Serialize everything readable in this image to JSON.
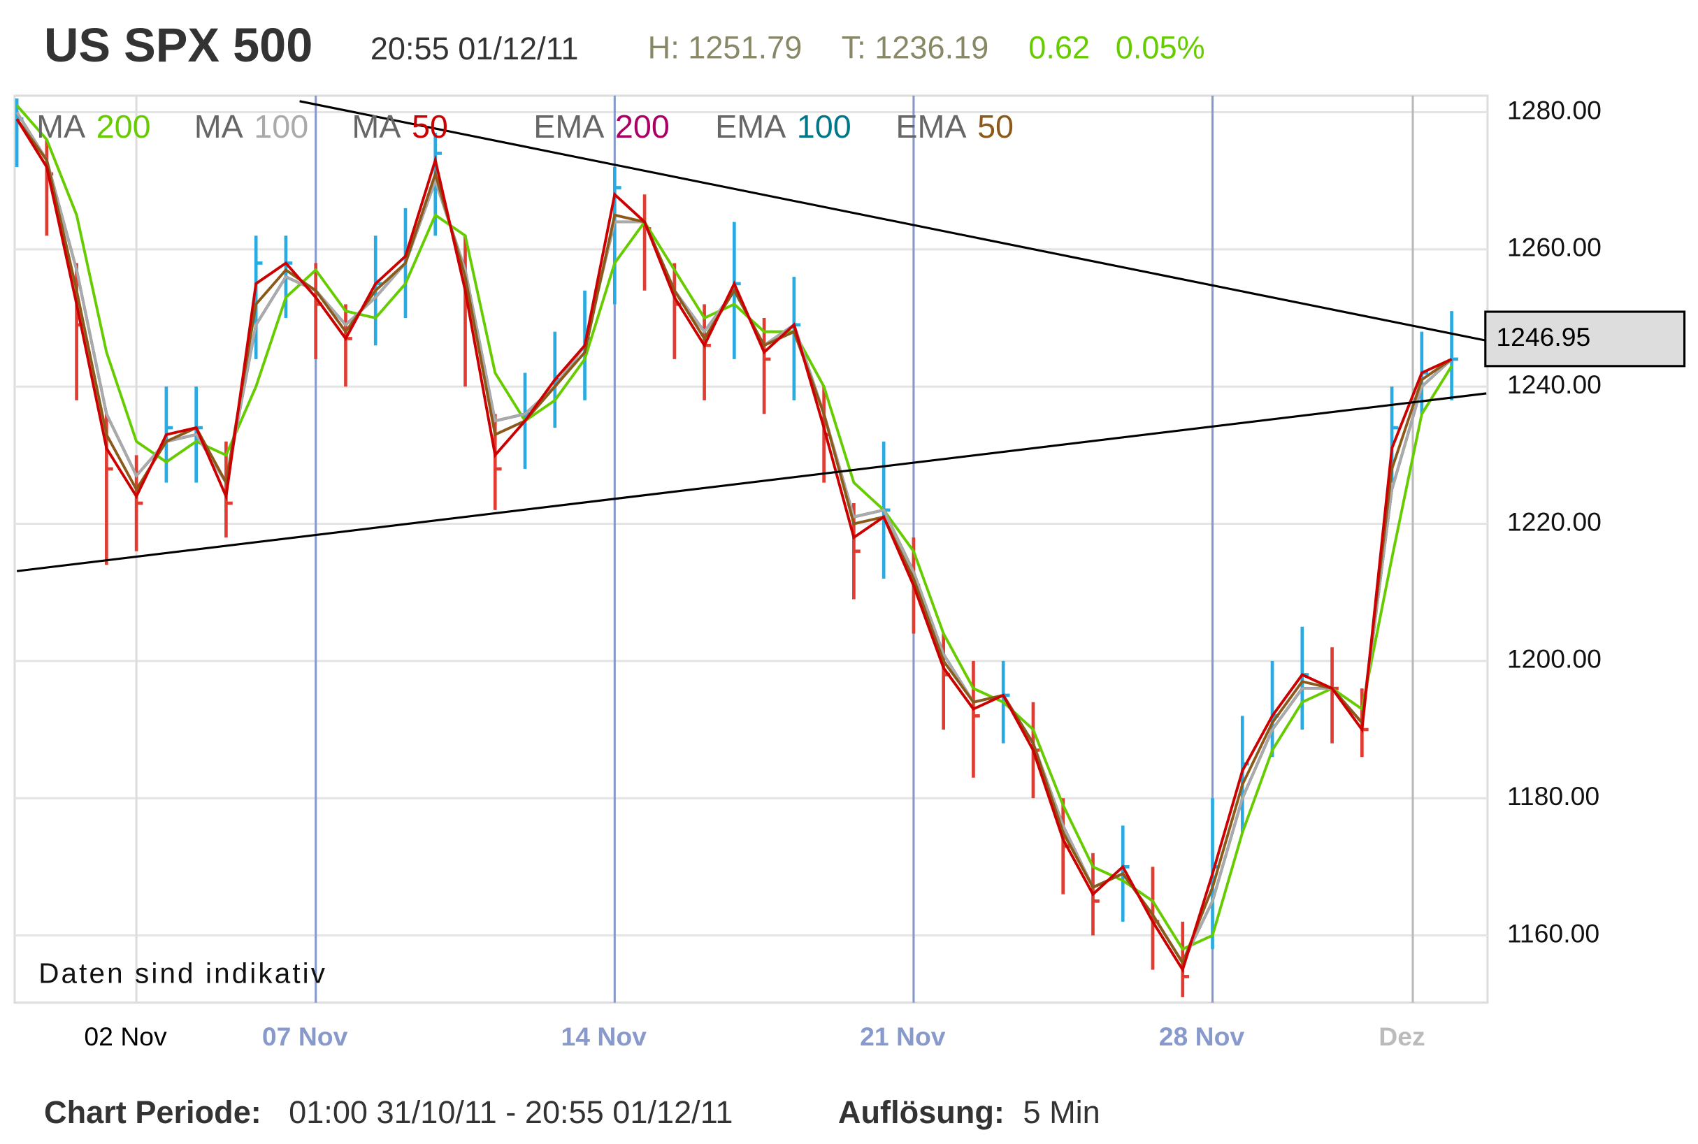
{
  "header": {
    "title": "US SPX 500",
    "timestamp": "20:55 01/12/11",
    "high": "H: 1251.79",
    "low": "T: 1236.19",
    "change": "0.62",
    "change_pct": "0.05%"
  },
  "chart_data": {
    "type": "ohlc",
    "x": [
      0,
      0.5,
      1,
      1.5,
      2,
      2.5,
      3,
      3.5,
      4,
      4.5,
      5,
      5.5,
      6,
      6.5,
      7,
      7.5,
      8,
      8.5,
      9,
      9.5,
      10,
      10.5,
      11,
      11.5,
      12,
      12.5,
      13,
      13.5,
      14,
      14.5,
      15,
      15.5,
      16,
      16.5,
      17,
      17.5,
      18,
      18.5,
      19,
      19.5,
      20,
      20.5,
      21,
      21.5,
      22,
      22.5,
      23,
      23.5,
      24
    ],
    "high": [
      1282,
      1276,
      1258,
      1236,
      1230,
      1240,
      1240,
      1232,
      1262,
      1262,
      1258,
      1252,
      1262,
      1266,
      1277,
      1262,
      1236,
      1242,
      1248,
      1254,
      1272,
      1268,
      1258,
      1252,
      1264,
      1250,
      1256,
      1240,
      1223,
      1232,
      1218,
      1204,
      1200,
      1200,
      1194,
      1180,
      1172,
      1176,
      1170,
      1162,
      1180,
      1192,
      1200,
      1205,
      1202,
      1196,
      1240,
      1248,
      1251
    ],
    "low": [
      1272,
      1262,
      1238,
      1214,
      1216,
      1226,
      1226,
      1218,
      1244,
      1250,
      1244,
      1240,
      1246,
      1250,
      1262,
      1240,
      1222,
      1228,
      1234,
      1238,
      1252,
      1254,
      1244,
      1238,
      1244,
      1236,
      1238,
      1226,
      1209,
      1212,
      1204,
      1190,
      1183,
      1188,
      1180,
      1166,
      1160,
      1162,
      1155,
      1151,
      1158,
      1175,
      1186,
      1190,
      1188,
      1186,
      1226,
      1236,
      1238
    ],
    "close": [
      1279,
      1271,
      1249,
      1228,
      1223,
      1234,
      1234,
      1223,
      1258,
      1258,
      1252,
      1247,
      1255,
      1260,
      1274,
      1252,
      1228,
      1236,
      1241,
      1247,
      1269,
      1263,
      1252,
      1246,
      1255,
      1244,
      1249,
      1233,
      1216,
      1222,
      1211,
      1198,
      1192,
      1195,
      1187,
      1173,
      1165,
      1170,
      1162,
      1154,
      1170,
      1185,
      1192,
      1198,
      1196,
      1190,
      1234,
      1242,
      1244
    ],
    "up_color": "#29abe2",
    "down_color": "#e03c31",
    "series": [
      {
        "name": "MA",
        "period": 200,
        "color": "#66cc00",
        "values": [
          1281,
          1276,
          1265,
          1245,
          1232,
          1229,
          1232,
          1230,
          1240,
          1253,
          1257,
          1251,
          1250,
          1255,
          1265,
          1262,
          1242,
          1235,
          1238,
          1244,
          1258,
          1264,
          1257,
          1250,
          1252,
          1248,
          1248,
          1240,
          1226,
          1222,
          1216,
          1204,
          1196,
          1194,
          1190,
          1179,
          1170,
          1168,
          1165,
          1158,
          1160,
          1175,
          1187,
          1194,
          1196,
          1193,
          1215,
          1236,
          1243
        ]
      },
      {
        "name": "MA",
        "period": 100,
        "color": "#aaaaaa",
        "values": [
          1280,
          1273,
          1257,
          1236,
          1227,
          1232,
          1233,
          1226,
          1249,
          1256,
          1254,
          1249,
          1253,
          1258,
          1270,
          1257,
          1235,
          1236,
          1240,
          1246,
          1264,
          1264,
          1254,
          1248,
          1254,
          1246,
          1249,
          1236,
          1221,
          1222,
          1213,
          1201,
          1194,
          1195,
          1188,
          1176,
          1167,
          1169,
          1163,
          1156,
          1165,
          1180,
          1190,
          1196,
          1196,
          1191,
          1225,
          1240,
          1244
        ]
      },
      {
        "name": "MA",
        "period": 50,
        "color": "#cc0000",
        "values": [
          1279,
          1272,
          1252,
          1231,
          1224,
          1233,
          1234,
          1224,
          1255,
          1258,
          1253,
          1247,
          1255,
          1259,
          1273,
          1254,
          1230,
          1235,
          1241,
          1246,
          1268,
          1264,
          1253,
          1246,
          1255,
          1245,
          1249,
          1234,
          1218,
          1221,
          1211,
          1199,
          1193,
          1195,
          1187,
          1174,
          1166,
          1170,
          1162,
          1155,
          1169,
          1184,
          1192,
          1198,
          1196,
          1190,
          1231,
          1242,
          1244
        ]
      },
      {
        "name": "EMA",
        "period": 200,
        "color": "#aa0066",
        "values": [
          1280,
          1273,
          1257,
          1236,
          1227,
          1232,
          1233,
          1226,
          1249,
          1256,
          1254,
          1249,
          1253,
          1258,
          1270,
          1257,
          1235,
          1236,
          1240,
          1246,
          1264,
          1264,
          1254,
          1248,
          1254,
          1246,
          1249,
          1236,
          1221,
          1222,
          1213,
          1201,
          1194,
          1195,
          1188,
          1176,
          1167,
          1169,
          1163,
          1156,
          1165,
          1180,
          1190,
          1196,
          1196,
          1191,
          1225,
          1240,
          1244
        ]
      },
      {
        "name": "EMA",
        "period": 100,
        "color": "#007788",
        "values": [
          1280,
          1273,
          1257,
          1236,
          1227,
          1232,
          1233,
          1226,
          1249,
          1256,
          1254,
          1249,
          1253,
          1258,
          1270,
          1257,
          1235,
          1236,
          1240,
          1246,
          1264,
          1264,
          1254,
          1248,
          1254,
          1246,
          1249,
          1236,
          1221,
          1222,
          1213,
          1201,
          1194,
          1195,
          1188,
          1176,
          1167,
          1169,
          1163,
          1156,
          1165,
          1180,
          1190,
          1196,
          1196,
          1191,
          1225,
          1240,
          1244
        ]
      },
      {
        "name": "EMA",
        "period": 50,
        "color": "#8b5a1a",
        "values": [
          1279,
          1273,
          1254,
          1233,
          1225,
          1232,
          1234,
          1226,
          1252,
          1257,
          1254,
          1248,
          1254,
          1258,
          1271,
          1256,
          1233,
          1235,
          1240,
          1245,
          1265,
          1264,
          1254,
          1247,
          1254,
          1246,
          1248,
          1236,
          1220,
          1221,
          1212,
          1200,
          1194,
          1195,
          1188,
          1175,
          1167,
          1169,
          1163,
          1156,
          1167,
          1182,
          1191,
          1197,
          1196,
          1191,
          1228,
          1241,
          1244
        ]
      }
    ],
    "trendlines": [
      {
        "x": [
          4.73,
          24.58
        ],
        "y": [
          1281.6,
          1246.7
        ]
      },
      {
        "x": [
          0,
          24.58
        ],
        "y": [
          1213.1,
          1239.0
        ]
      }
    ],
    "last_price": 1246.95,
    "xlim": [
      0,
      24.6
    ],
    "ylim": [
      1150.2,
      1282.4
    ],
    "xticks": [
      {
        "value": 2,
        "label": "02 Nov"
      },
      {
        "value": 5,
        "label": "07 Nov"
      },
      {
        "value": 10,
        "label": "14 Nov"
      },
      {
        "value": 15,
        "label": "21 Nov"
      },
      {
        "value": 20,
        "label": "28 Nov"
      },
      {
        "value": 23.35,
        "label": "Dez"
      }
    ],
    "xtick_colors": [
      "#000000",
      "#8899cc",
      "#8899cc",
      "#8899cc",
      "#8899cc",
      "#bbbbbb"
    ],
    "yticks": [
      {
        "value": 1160,
        "label": "1160.00"
      },
      {
        "value": 1180,
        "label": "1180.00"
      },
      {
        "value": 1200,
        "label": "1200.00"
      },
      {
        "value": 1220,
        "label": "1220.00"
      },
      {
        "value": 1240,
        "label": "1240.00"
      },
      {
        "value": 1260,
        "label": "1260.00"
      },
      {
        "value": 1280,
        "label": "1280.00"
      }
    ],
    "grid": true,
    "note": "Daten sind indikativ"
  },
  "footer": {
    "period_label": "Chart Periode:",
    "period": "01:00 31/10/11 - 20:55 01/12/11",
    "resolution_label": "Auflösung:",
    "resolution": "5 Min"
  }
}
